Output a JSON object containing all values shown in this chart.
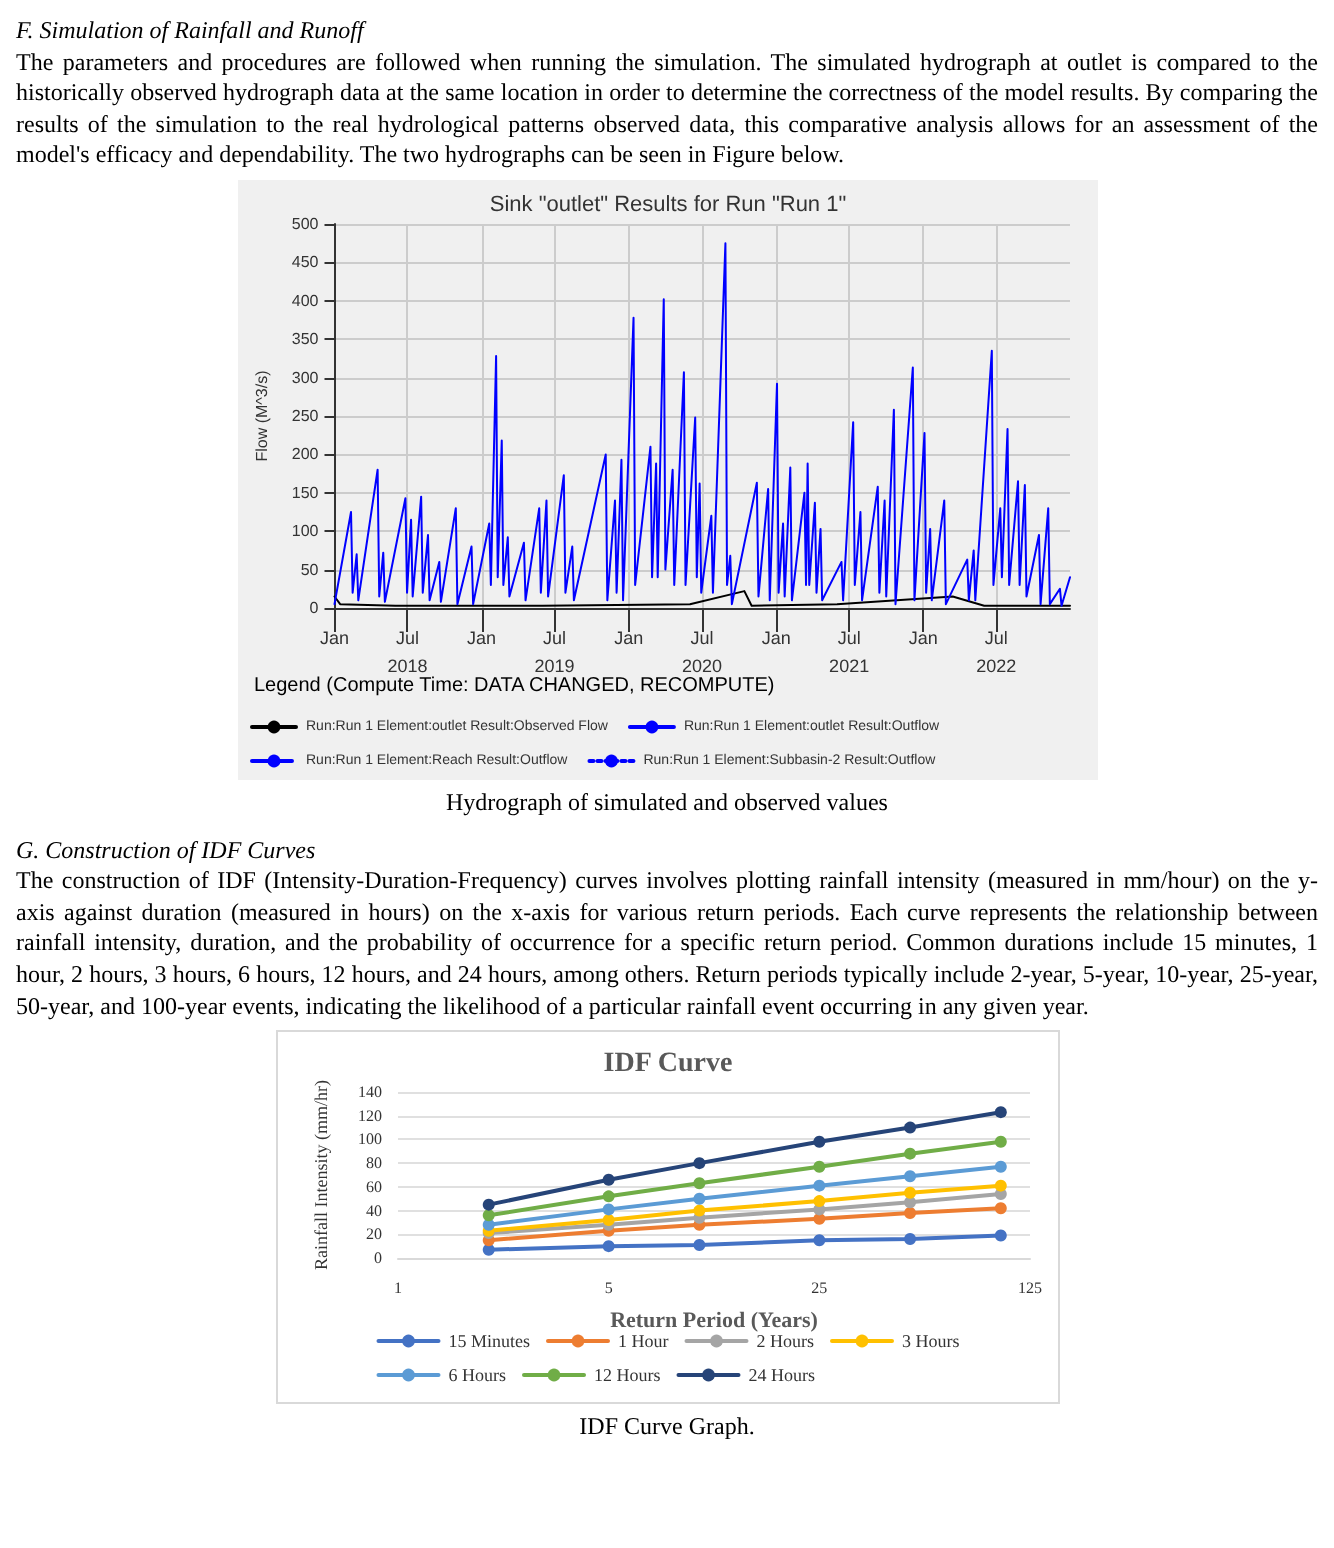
{
  "chart_data": [
    {
      "type": "line",
      "title": "Sink \"outlet\" Results for Run \"Run 1\"",
      "ylabel": "Flow (M^3/s)",
      "legend_title": "Legend (Compute Time: DATA CHANGED, RECOMPUTE)",
      "annotations": [
        "F. Simulation of Rainfall and Runoff",
        "The parameters and procedures are followed when running the simulation. The simulated hydrograph at outlet is compared to the historically observed hydrograph data at the same location in order to determine the correctness of the model results. By comparing the results of the simulation to the real hydrological patterns observed data, this comparative analysis allows for an assessment of the model's efficacy and dependability. The two hydrographs can be seen in Figure below.",
        "Hydrograph of simulated and observed values"
      ],
      "xlim": [
        "2018-01-01",
        "2022-12-31"
      ],
      "xticks": [
        {
          "value": "2018-01",
          "label": "Jan"
        },
        {
          "value": "2018-07",
          "label": "Jul\n2018"
        },
        {
          "value": "2019-01",
          "label": "Jan"
        },
        {
          "value": "2019-07",
          "label": "Jul\n2019"
        },
        {
          "value": "2020-01",
          "label": "Jan"
        },
        {
          "value": "2020-07",
          "label": "Jul\n2020"
        },
        {
          "value": "2021-01",
          "label": "Jan"
        },
        {
          "value": "2021-07",
          "label": "Jul\n2021"
        },
        {
          "value": "2022-01",
          "label": "Jan"
        },
        {
          "value": "2022-07",
          "label": "Jul\n2022"
        }
      ],
      "ylim": [
        0,
        500
      ],
      "yticks": [
        0,
        50,
        100,
        150,
        200,
        250,
        300,
        350,
        400,
        450,
        500
      ],
      "grid": true,
      "legend": "bottom",
      "series": [
        {
          "name": "Run:Run 1 Element:outlet Result:Observed Flow",
          "color": "#000000",
          "x": [
            "2018-01-01",
            "2018-01-15",
            "2018-06-01",
            "2019-06-01",
            "2020-06-01",
            "2020-10-14",
            "2020-11-01",
            "2021-06-01",
            "2022-03-15",
            "2022-06-01",
            "2022-12-31"
          ],
          "values": [
            15,
            5,
            3,
            3,
            5,
            22,
            3,
            5,
            15,
            3,
            3
          ]
        },
        {
          "name": "Run:Run 1 Element:outlet Result:Outflow",
          "color": "#0000ff",
          "x": [
            "2018-01-01",
            "2018-02-11",
            "2018-02-15",
            "2018-02-25",
            "2018-03-01",
            "2018-04-18",
            "2018-04-22",
            "2018-05-02",
            "2018-05-06",
            "2018-06-26",
            "2018-06-30",
            "2018-07-10",
            "2018-07-14",
            "2018-08-04",
            "2018-08-08",
            "2018-08-21",
            "2018-08-25",
            "2018-09-18",
            "2018-09-22",
            "2018-10-29",
            "2018-11-02",
            "2018-12-07",
            "2018-12-11",
            "2019-01-20",
            "2019-01-24",
            "2019-02-06",
            "2019-02-10",
            "2019-02-20",
            "2019-02-24",
            "2019-03-07",
            "2019-03-11",
            "2019-04-16",
            "2019-04-20",
            "2019-05-24",
            "2019-05-28",
            "2019-06-11",
            "2019-06-15",
            "2019-07-24",
            "2019-07-28",
            "2019-08-14",
            "2019-08-18",
            "2019-11-05",
            "2019-11-09",
            "2019-11-28",
            "2019-12-02",
            "2019-12-14",
            "2019-12-18",
            "2020-01-13",
            "2020-01-17",
            "2020-02-24",
            "2020-02-28",
            "2020-03-09",
            "2020-03-13",
            "2020-03-28",
            "2020-04-01",
            "2020-04-19",
            "2020-04-23",
            "2020-05-17",
            "2020-05-21",
            "2020-06-14",
            "2020-06-18",
            "2020-06-25",
            "2020-06-29",
            "2020-07-24",
            "2020-07-28",
            "2020-08-28",
            "2020-09-01",
            "2020-09-09",
            "2020-09-13",
            "2020-11-14",
            "2020-11-18",
            "2020-12-12",
            "2020-12-16",
            "2021-01-03",
            "2021-01-07",
            "2021-01-18",
            "2021-01-22",
            "2021-02-05",
            "2021-02-09",
            "2021-03-12",
            "2021-03-16",
            "2021-03-20",
            "2021-03-24",
            "2021-04-07",
            "2021-04-11",
            "2021-04-21",
            "2021-04-25",
            "2021-06-12",
            "2021-06-16",
            "2021-07-11",
            "2021-07-15",
            "2021-07-29",
            "2021-08-02",
            "2021-09-10",
            "2021-09-14",
            "2021-09-27",
            "2021-10-01",
            "2021-10-20",
            "2021-10-24",
            "2021-12-06",
            "2021-12-10",
            "2022-01-04",
            "2022-01-08",
            "2022-01-18",
            "2022-01-22",
            "2022-02-22",
            "2022-02-26",
            "2022-04-20",
            "2022-04-24",
            "2022-05-06",
            "2022-05-10",
            "2022-06-20",
            "2022-06-24",
            "2022-07-11",
            "2022-07-15",
            "2022-07-29",
            "2022-08-02",
            "2022-08-24",
            "2022-08-28",
            "2022-09-10",
            "2022-09-14",
            "2022-10-15",
            "2022-10-19",
            "2022-11-07",
            "2022-11-11",
            "2022-12-06",
            "2022-12-10",
            "2022-12-31"
          ],
          "values": [
            5,
            125,
            20,
            70,
            10,
            180,
            15,
            72,
            8,
            143,
            20,
            115,
            15,
            145,
            20,
            95,
            10,
            60,
            8,
            130,
            5,
            80,
            5,
            110,
            30,
            328,
            40,
            218,
            30,
            92,
            15,
            85,
            10,
            130,
            20,
            140,
            15,
            173,
            20,
            80,
            10,
            200,
            10,
            140,
            20,
            193,
            10,
            378,
            30,
            210,
            40,
            188,
            40,
            402,
            50,
            180,
            30,
            307,
            30,
            248,
            40,
            162,
            20,
            120,
            20,
            475,
            30,
            68,
            5,
            163,
            15,
            155,
            10,
            292,
            20,
            110,
            15,
            183,
            10,
            150,
            30,
            188,
            30,
            137,
            20,
            103,
            10,
            60,
            10,
            242,
            30,
            125,
            10,
            158,
            20,
            140,
            15,
            258,
            5,
            313,
            10,
            228,
            20,
            103,
            10,
            140,
            5,
            63,
            10,
            75,
            10,
            335,
            30,
            130,
            40,
            233,
            30,
            165,
            30,
            160,
            15,
            95,
            5,
            130,
            5,
            25,
            3,
            40
          ]
        },
        {
          "name": "Run:Run 1 Element:Reach Result:Outflow",
          "color": "#0000ff",
          "line_style": "dashed"
        },
        {
          "name": "Run:Run 1 Element:Subbasin-2 Result:Outflow",
          "color": "#0000ff",
          "line_style": "dotted"
        }
      ]
    },
    {
      "type": "line",
      "title": "IDF Curve",
      "xlabel": "Return Period (Years)",
      "ylabel": "Rainfall Intensity (mm/hr)",
      "annotations": [
        "G. Construction of IDF Curves",
        "The construction of IDF (Intensity-Duration-Frequency) curves involves plotting rainfall intensity (measured in mm/hour) on the y-axis against duration (measured in hours) on the x-axis for various return periods. Each curve represents the relationship between rainfall intensity, duration, and the probability of occurrence for a specific return period. Common durations include 15 minutes, 1 hour, 2 hours, 3 hours, 6 hours, 12 hours, and 24 hours, among others. Return periods typically include 2-year, 5-year, 10-year, 25-year, 50-year, and 100-year events, indicating the likelihood of a particular rainfall event occurring in any given year.",
        "IDF Curve Graph."
      ],
      "x": [
        2,
        5,
        10,
        25,
        50,
        100
      ],
      "xlim": [
        1,
        125
      ],
      "xticks": [
        1,
        5,
        25,
        125
      ],
      "log": "x",
      "ylim": [
        0,
        140
      ],
      "yticks": [
        0,
        20,
        40,
        60,
        80,
        100,
        120,
        140
      ],
      "grid": "y",
      "legend": "bottom",
      "marker": "circle",
      "series": [
        {
          "name": "15 Minutes",
          "color": "#4472c4",
          "values": [
            7,
            10,
            11,
            15,
            16,
            19
          ]
        },
        {
          "name": "1 Hour",
          "color": "#ed7d31",
          "values": [
            15,
            23,
            28,
            33,
            38,
            42
          ]
        },
        {
          "name": "2 Hours",
          "color": "#a5a5a5",
          "values": [
            21,
            28,
            34,
            41,
            47,
            54
          ]
        },
        {
          "name": "3 Hours",
          "color": "#ffc000",
          "values": [
            23,
            32,
            40,
            48,
            55,
            61
          ]
        },
        {
          "name": "6 Hours",
          "color": "#5b9bd5",
          "values": [
            28,
            41,
            50,
            61,
            69,
            77
          ]
        },
        {
          "name": "12 Hours",
          "color": "#70ad47",
          "values": [
            36,
            52,
            63,
            77,
            88,
            98
          ]
        },
        {
          "name": "24 Hours",
          "color": "#264478",
          "values": [
            45,
            66,
            80,
            98,
            110,
            123
          ]
        }
      ]
    }
  ]
}
